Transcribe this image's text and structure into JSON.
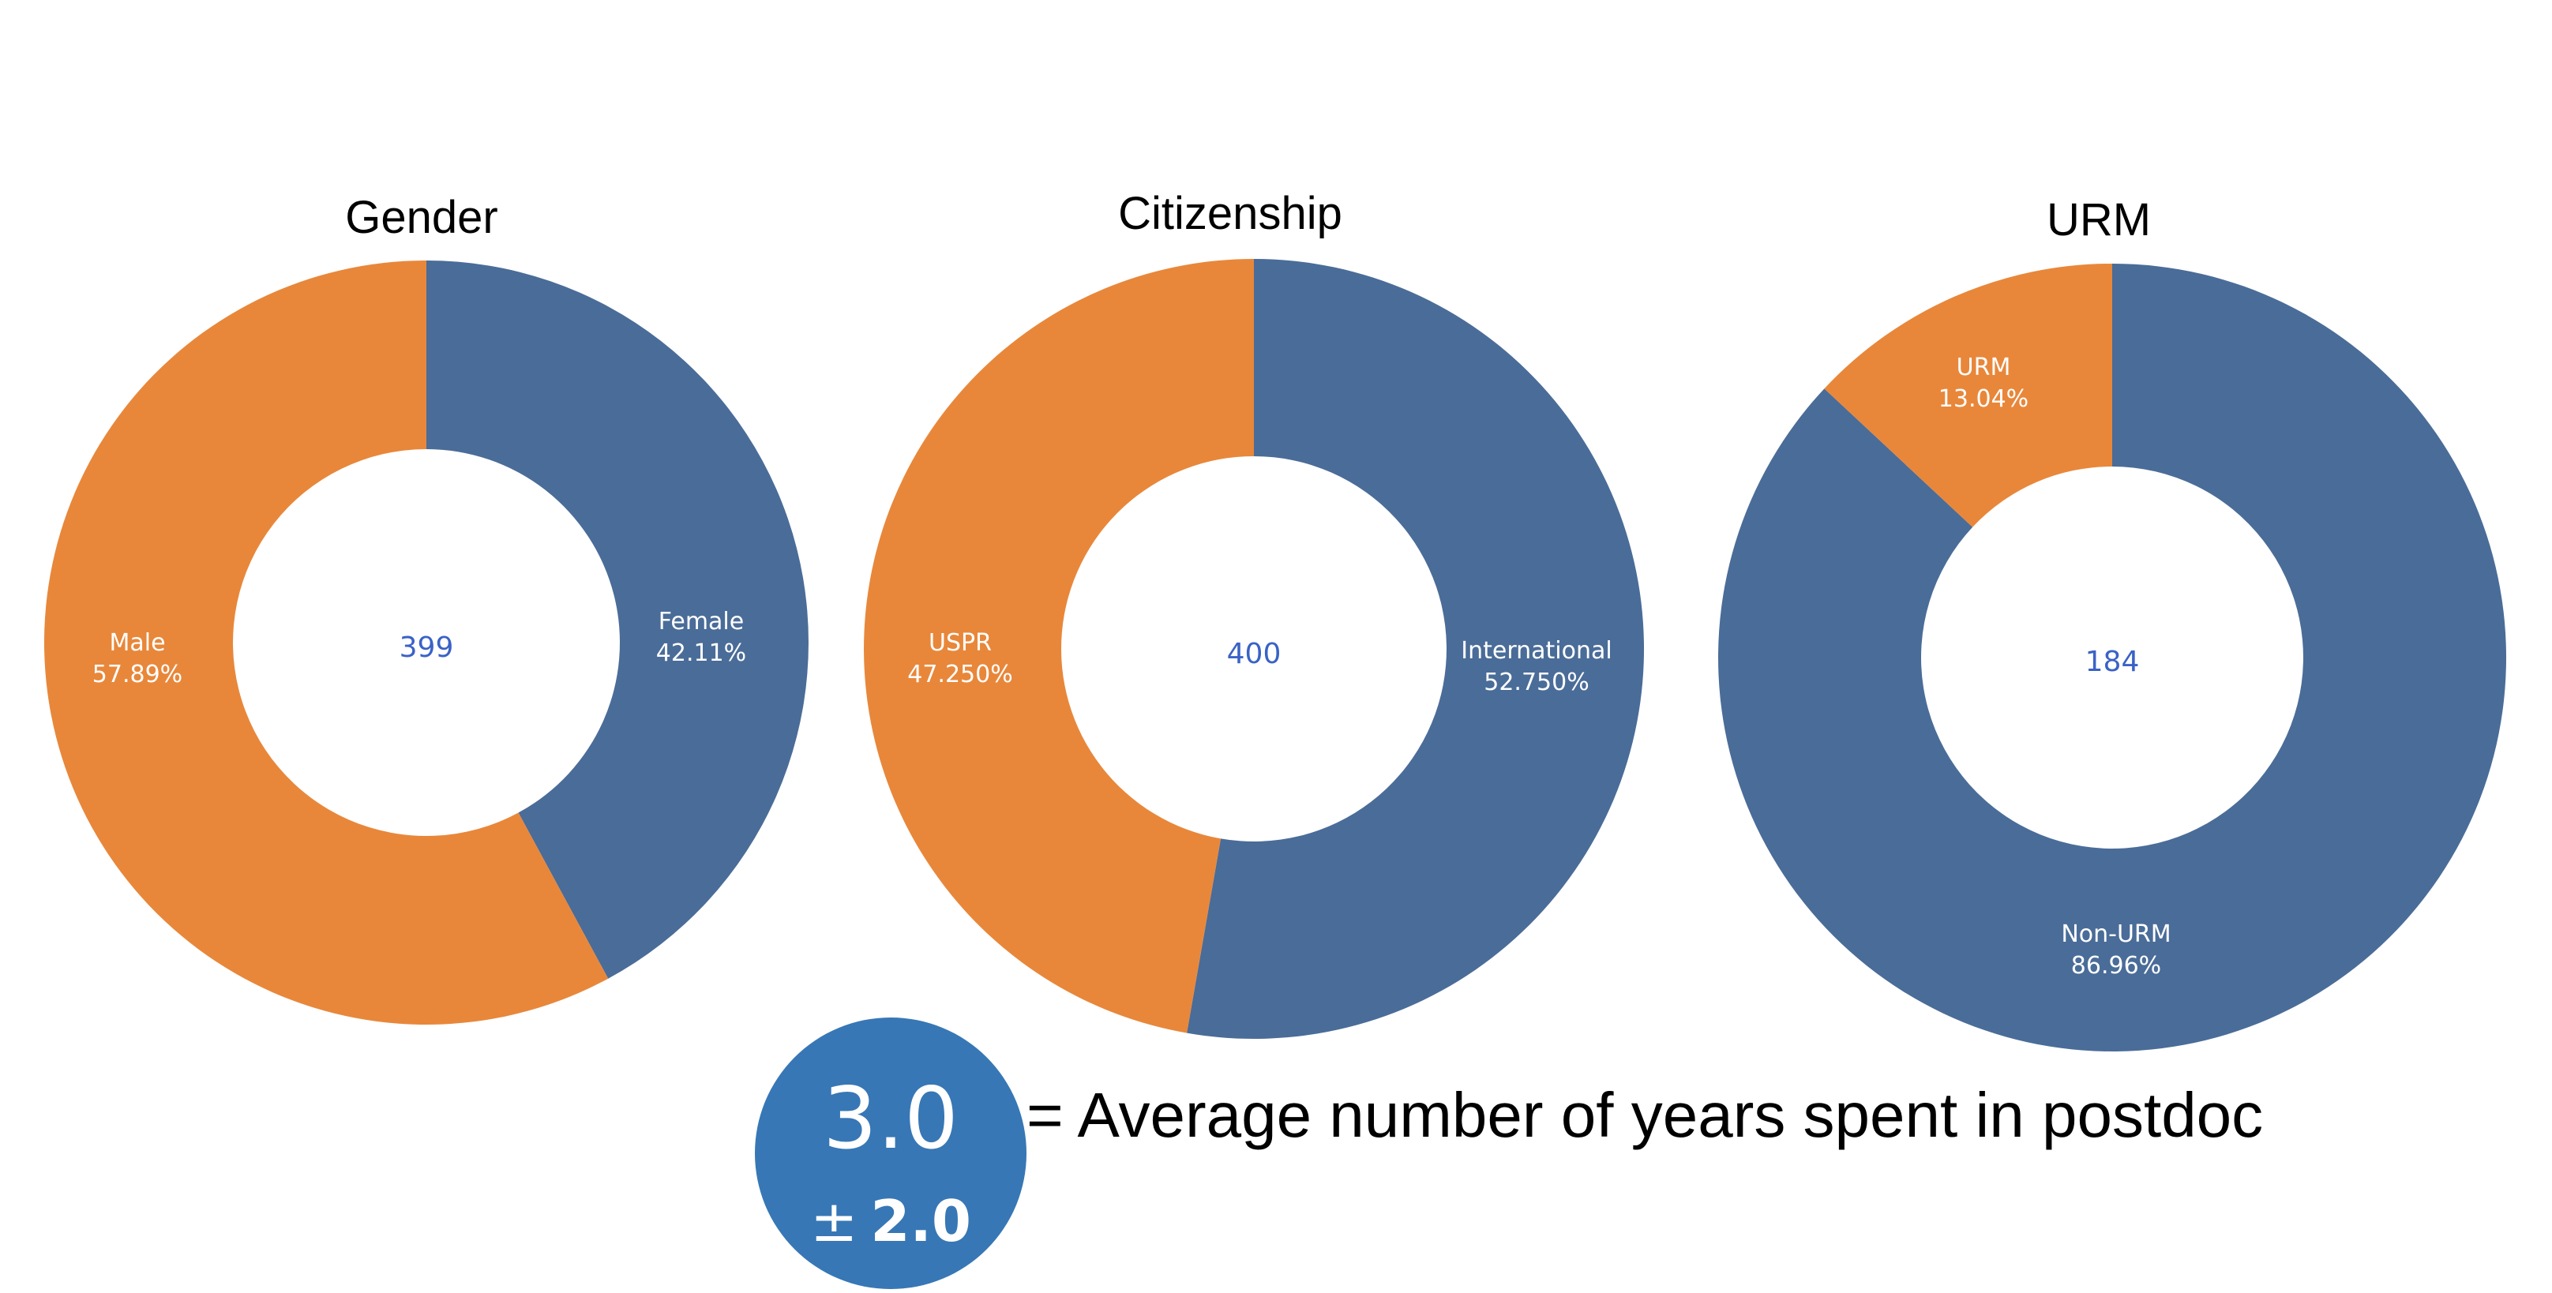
{
  "colors": {
    "orange": "#E8873A",
    "blue": "#4A6C98",
    "center_text": "#3A62C6",
    "badge": "#3777B5",
    "background": "#FFFFFF"
  },
  "chart_data": [
    {
      "type": "pie",
      "style": "donut",
      "title": "Gender",
      "total": "399",
      "slices": [
        {
          "name": "Female",
          "value": 42.11,
          "value_label": "42.11%",
          "color": "#4A6C98"
        },
        {
          "name": "Male",
          "value": 57.89,
          "value_label": "57.89%",
          "color": "#E8873A"
        }
      ]
    },
    {
      "type": "pie",
      "style": "donut",
      "title": "Citizenship",
      "total": "400",
      "slices": [
        {
          "name": "International",
          "value": 52.75,
          "value_label": "52.750%",
          "color": "#4A6C98"
        },
        {
          "name": "USPR",
          "value": 47.25,
          "value_label": "47.250%",
          "color": "#E8873A"
        }
      ]
    },
    {
      "type": "pie",
      "style": "donut",
      "title": "URM",
      "total": "184",
      "slices": [
        {
          "name": "Non-URM",
          "value": 86.96,
          "value_label": "86.96%",
          "color": "#4A6C98"
        },
        {
          "name": "URM",
          "value": 13.04,
          "value_label": "13.04%",
          "color": "#E8873A"
        }
      ]
    }
  ],
  "summary": {
    "mean": "3.0",
    "pm_symbol": "±",
    "sd": "2.0",
    "caption": "= Average number of years spent in postdoc"
  }
}
